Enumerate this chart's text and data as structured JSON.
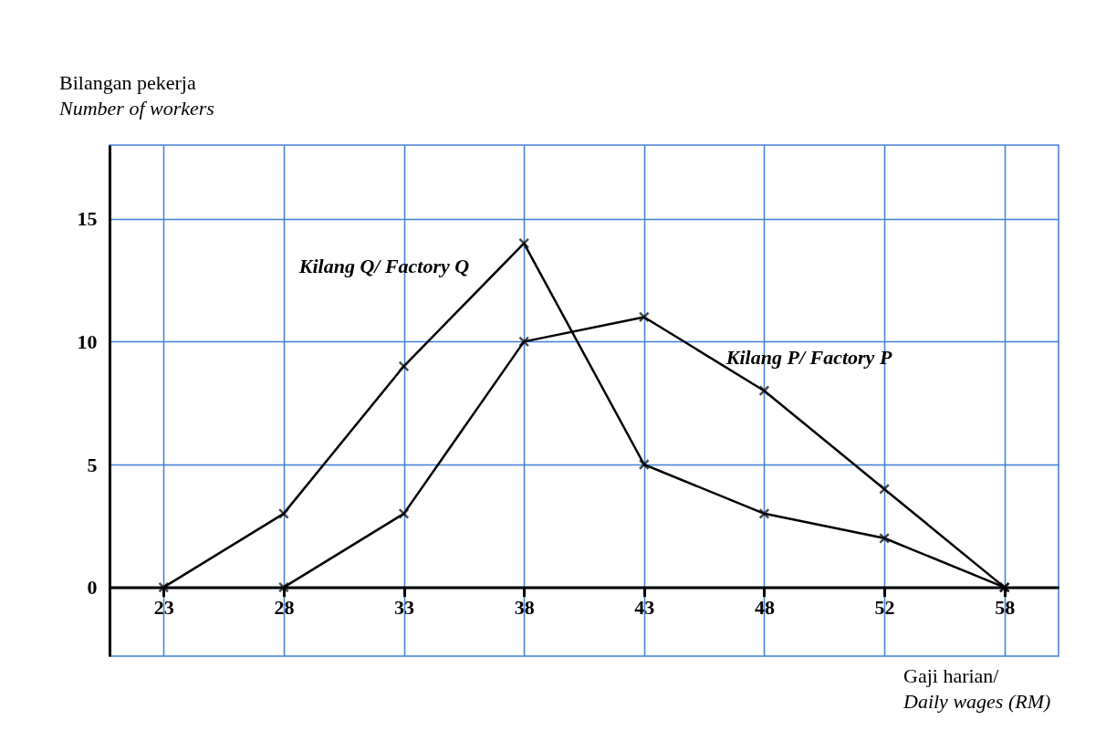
{
  "chart_data": {
    "type": "line",
    "xlabel": "Gaji harian/\nDaily wages (RM)",
    "ylabel": "Bilangan pekerja\nNumber of workers",
    "categories": [
      "23",
      "28",
      "33",
      "38",
      "43",
      "48",
      "52",
      "58"
    ],
    "series": [
      {
        "name": "Kilang Q/ Factory Q",
        "color": "#000000",
        "values": [
          0,
          3,
          9,
          14,
          5,
          3,
          2,
          0
        ]
      },
      {
        "name": "Kilang P/ Factory P",
        "color": "#000000",
        "values": [
          null,
          0,
          3,
          10,
          11,
          8,
          4,
          0
        ]
      }
    ],
    "ylim": [
      -2.8,
      18
    ],
    "yticks": [
      0,
      5,
      10,
      15
    ],
    "grid": true,
    "marker": "cross",
    "line_style": "solid"
  }
}
